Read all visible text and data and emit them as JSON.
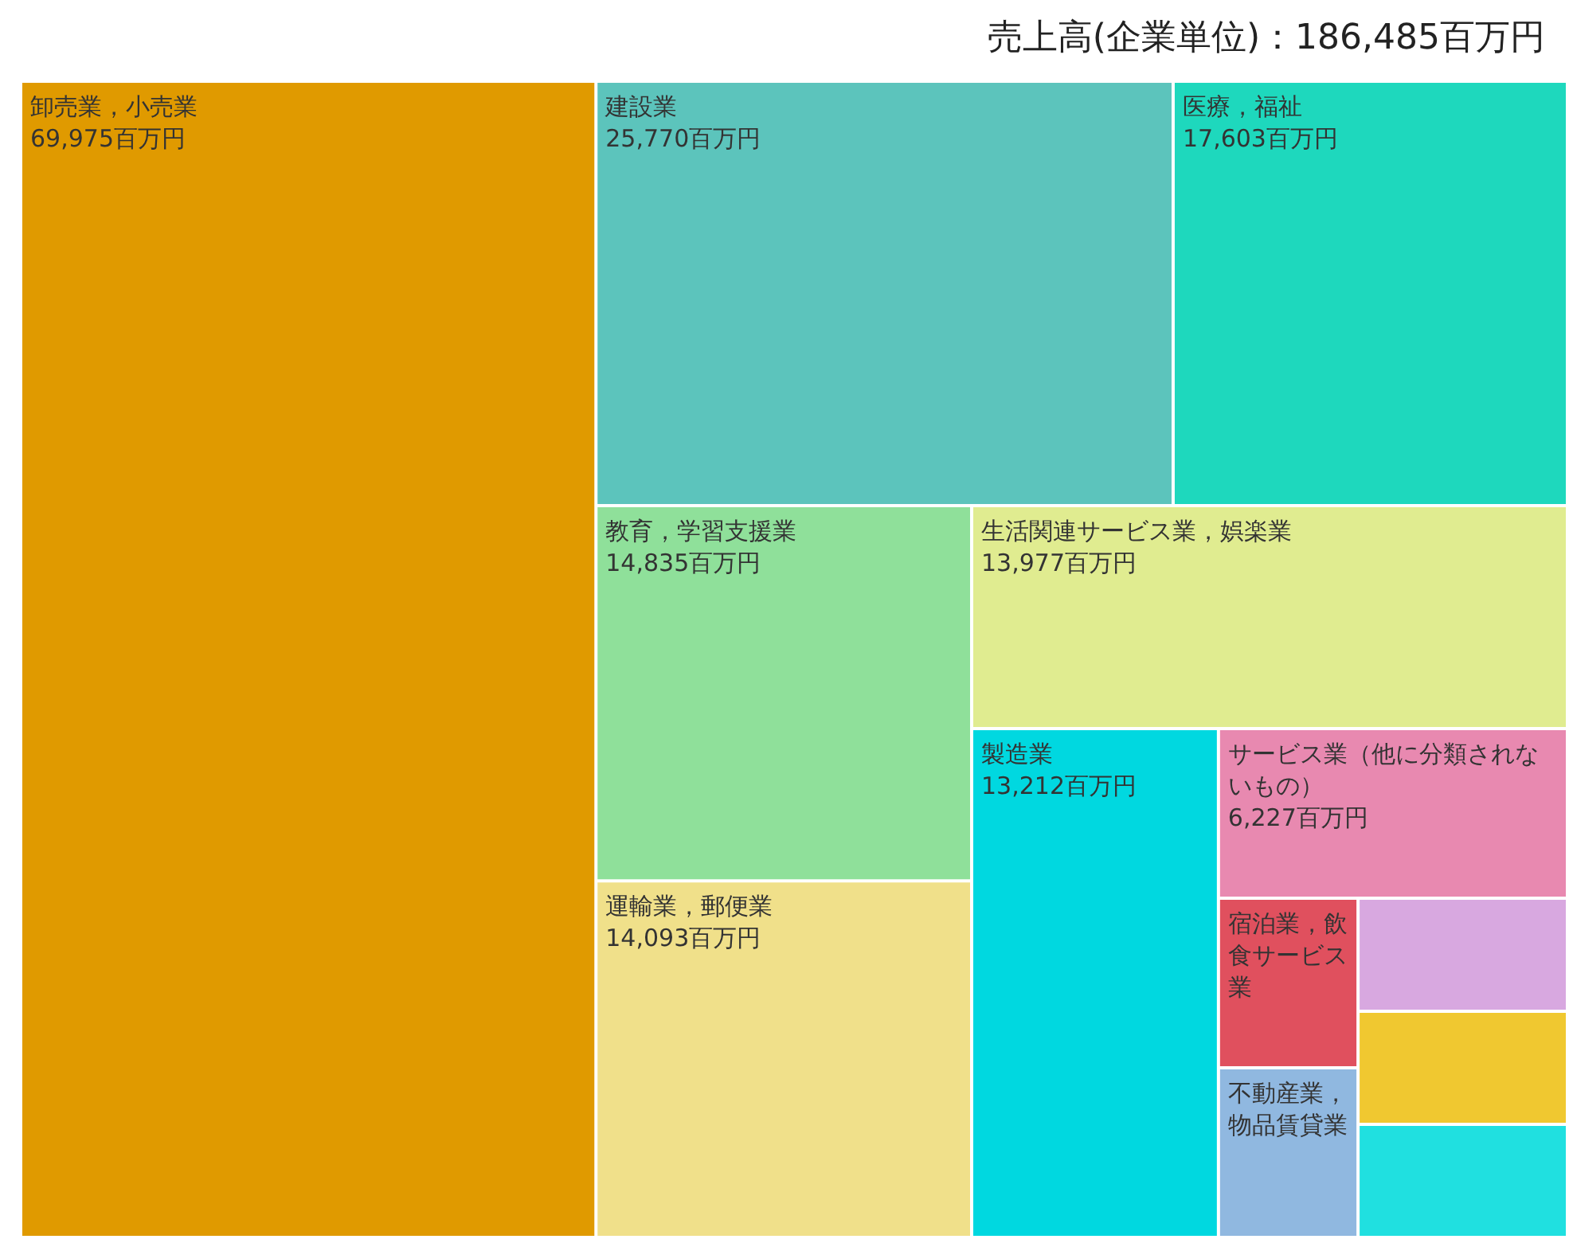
{
  "chart_data": {
    "type": "other",
    "title": "売上高(企業単位)：186,485百万円",
    "categories": [
      "卸売業，小売業",
      "建設業",
      "医療，福祉",
      "教育，学習支援業",
      "運輸業，郵便業",
      "生活関連サービス業，娯楽業",
      "製造業",
      "サービス業（他に分類されないもの）",
      "宿泊業，飲食サービス業",
      "不動産業，物品賃貸業",
      null,
      null,
      null
    ],
    "values": [
      69975,
      25770,
      17603,
      14835,
      14093,
      13977,
      13212,
      6227,
      null,
      null,
      null,
      null,
      null
    ],
    "value_labels": [
      "69,975百万円",
      "25,770百万円",
      "17,603百万円",
      "14,835百万円",
      "14,093百万円",
      "13,977百万円",
      "13,212百万円",
      "6,227百万円",
      null,
      null,
      null,
      null,
      null
    ],
    "colors": [
      "#e09a00",
      "#5cc4bc",
      "#1ed8bd",
      "#8fe09a",
      "#f0e08a",
      "#e0ec90",
      "#00d8e0",
      "#e889b0",
      "#e0505e",
      "#90b8e0",
      "#d8a8e0",
      "#f0c830",
      "#20e0e0"
    ]
  }
}
